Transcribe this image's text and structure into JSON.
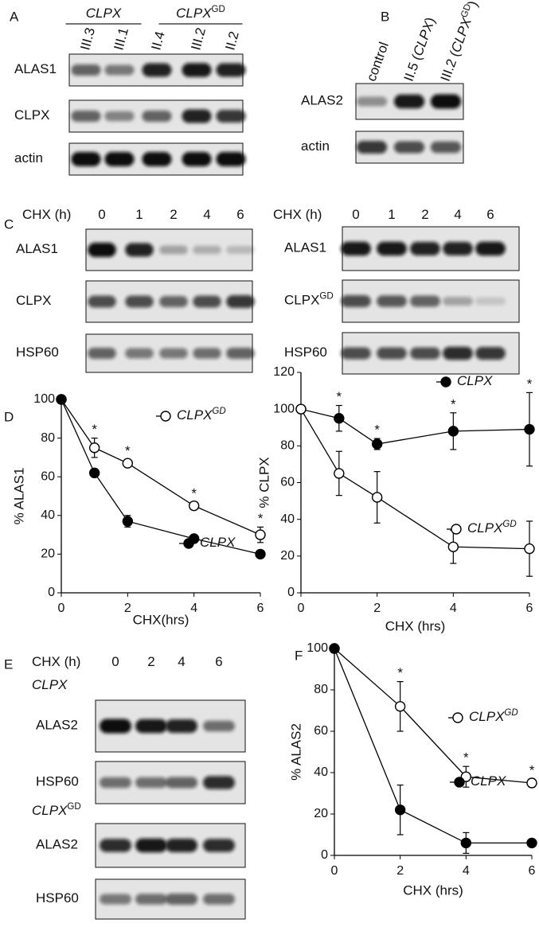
{
  "blots": [
    {
      "letter": "A",
      "groups": [
        [
          {
            "t": "CLPX",
            "i": true
          }
        ],
        [
          {
            "t": "CLPX",
            "i": true
          },
          {
            "t": "GD",
            "sup": true
          }
        ]
      ],
      "lanes": [
        [
          {
            "t": "III.3"
          }
        ],
        [
          {
            "t": "III.1"
          }
        ],
        [
          {
            "t": "II.4"
          }
        ],
        [
          {
            "t": "III.2"
          }
        ],
        [
          {
            "t": "II.2"
          }
        ]
      ],
      "rows": [
        [
          {
            "t": "ALAS1"
          }
        ],
        [
          {
            "t": "CLPX"
          }
        ],
        [
          {
            "t": "actin"
          }
        ]
      ]
    },
    {
      "letter": "B",
      "lanes": [
        [
          {
            "t": "control"
          }
        ],
        [
          {
            "t": "II.5 ("
          },
          {
            "t": "CLPX",
            "i": true
          },
          {
            "t": ")"
          }
        ],
        [
          {
            "t": "III.2 ("
          },
          {
            "t": "CLPX",
            "i": true
          },
          {
            "t": "GD",
            "sup": true
          },
          {
            "t": ")"
          }
        ]
      ],
      "rows": [
        [
          {
            "t": "ALAS2"
          }
        ],
        [
          {
            "t": "actin"
          }
        ]
      ]
    },
    {
      "letter": "C",
      "header": [
        {
          "t": "CHX (h)"
        }
      ],
      "lanes": [
        [
          {
            "t": "0"
          }
        ],
        [
          {
            "t": "1"
          }
        ],
        [
          {
            "t": "2"
          }
        ],
        [
          {
            "t": "4"
          }
        ],
        [
          {
            "t": "6"
          }
        ]
      ],
      "rows": [
        [
          {
            "t": "ALAS1"
          }
        ],
        [
          {
            "t": "CLPX"
          }
        ],
        [
          {
            "t": "HSP60"
          }
        ]
      ]
    },
    {
      "header": [
        {
          "t": "CHX (h)"
        }
      ],
      "lanes": [
        [
          {
            "t": "0"
          }
        ],
        [
          {
            "t": "1"
          }
        ],
        [
          {
            "t": "2"
          }
        ],
        [
          {
            "t": "4"
          }
        ],
        [
          {
            "t": "6"
          }
        ]
      ],
      "rows": [
        [
          {
            "t": "ALAS1"
          }
        ],
        [
          {
            "t": "CLPX"
          },
          {
            "t": "GD",
            "sup": true
          }
        ],
        [
          {
            "t": "HSP60"
          }
        ]
      ]
    },
    {
      "letter": "E",
      "header": [
        {
          "t": "CHX (h)"
        }
      ],
      "groups": [
        [
          {
            "t": "CLPX",
            "i": true
          }
        ],
        [
          {
            "t": "CLPX",
            "i": true
          },
          {
            "t": "GD",
            "sup": true
          }
        ]
      ],
      "lanes": [
        [
          {
            "t": "0"
          }
        ],
        [
          {
            "t": "2"
          }
        ],
        [
          {
            "t": "4"
          }
        ],
        [
          {
            "t": "6"
          }
        ]
      ],
      "rows": [
        [
          {
            "t": "ALAS2"
          }
        ],
        [
          {
            "t": "HSP60"
          }
        ],
        [
          {
            "t": "ALAS2"
          }
        ],
        [
          {
            "t": "HSP60"
          }
        ]
      ]
    }
  ],
  "chart_data": [
    {
      "type": "line",
      "letter": "D",
      "x": [
        0,
        1,
        2,
        4,
        6
      ],
      "xlim": [
        0,
        6
      ],
      "xticks": [
        0,
        2,
        4,
        6
      ],
      "ylim": [
        0,
        100
      ],
      "yticks": [
        0,
        20,
        40,
        60,
        80,
        100
      ],
      "xlabel": "CHX(hrs)",
      "ylabel": "% ALAS1",
      "series": [
        {
          "name": "CLPX",
          "name_sup": "GD",
          "marker": "open",
          "color": "#000000",
          "values": [
            100,
            75,
            67,
            45,
            30
          ],
          "errors": [
            0,
            5,
            2,
            2,
            4
          ]
        },
        {
          "name": "CLPX",
          "marker": "filled",
          "color": "#000000",
          "values": [
            100,
            62,
            37,
            28,
            20
          ],
          "errors": [
            0,
            2,
            3,
            2,
            2
          ]
        }
      ],
      "annotations": [
        {
          "x": 1,
          "text": "*"
        },
        {
          "x": 2,
          "text": "*"
        },
        {
          "x": 4,
          "text": "*"
        },
        {
          "x": 6,
          "text": "*"
        }
      ]
    },
    {
      "type": "line",
      "x": [
        0,
        1,
        2,
        4,
        6
      ],
      "xlim": [
        0,
        6
      ],
      "xticks": [
        0,
        2,
        4,
        6
      ],
      "ylim": [
        0,
        120
      ],
      "yticks": [
        0,
        20,
        40,
        60,
        80,
        100,
        120
      ],
      "xlabel": "CHX (hrs)",
      "ylabel": "% CLPX",
      "series": [
        {
          "name": "CLPX",
          "marker": "filled",
          "color": "#000000",
          "values": [
            100,
            95,
            81,
            88,
            89
          ],
          "errors": [
            0,
            7,
            3,
            10,
            20
          ]
        },
        {
          "name": "CLPX",
          "name_sup": "GD",
          "marker": "open",
          "color": "#000000",
          "values": [
            100,
            65,
            52,
            25,
            24
          ],
          "errors": [
            0,
            12,
            14,
            9,
            15
          ]
        }
      ],
      "annotations": [
        {
          "x": 1,
          "text": "*"
        },
        {
          "x": 2,
          "text": "*"
        },
        {
          "x": 4,
          "text": "*"
        },
        {
          "x": 6,
          "text": "*"
        }
      ]
    },
    {
      "type": "line",
      "letter": "F",
      "x": [
        0,
        2,
        4,
        6
      ],
      "xlim": [
        0,
        6
      ],
      "xticks": [
        0,
        2,
        4,
        6
      ],
      "ylim": [
        0,
        100
      ],
      "yticks": [
        0,
        20,
        40,
        60,
        80,
        100
      ],
      "xlabel": "CHX (hrs)",
      "ylabel": "% ALAS2",
      "series": [
        {
          "name": "CLPX",
          "name_sup": "GD",
          "marker": "open",
          "color": "#000000",
          "values": [
            100,
            72,
            38,
            35
          ],
          "errors": [
            0,
            12,
            5,
            2
          ]
        },
        {
          "name": "CLPX",
          "marker": "filled",
          "color": "#000000",
          "values": [
            100,
            22,
            6,
            6
          ],
          "errors": [
            0,
            12,
            5,
            0
          ]
        }
      ],
      "annotations": [
        {
          "x": 2,
          "text": "*"
        },
        {
          "x": 4,
          "text": "*"
        },
        {
          "x": 6,
          "text": "*"
        }
      ]
    }
  ]
}
